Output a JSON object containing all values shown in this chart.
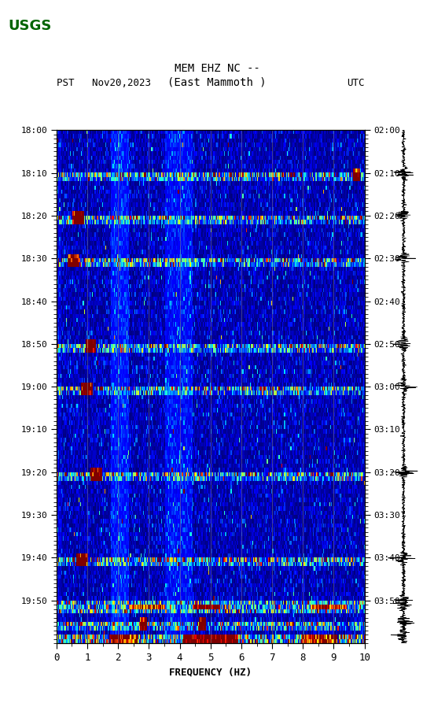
{
  "title_line1": "MEM EHZ NC --",
  "title_line2": "(East Mammoth )",
  "left_label": "PST   Nov20,2023",
  "right_label": "UTC",
  "xlabel": "FREQUENCY (HZ)",
  "ylabel_left_times": [
    "18:00",
    "18:10",
    "18:20",
    "18:30",
    "18:40",
    "18:50",
    "19:00",
    "19:10",
    "19:20",
    "19:30",
    "19:40",
    "19:50"
  ],
  "ylabel_right_times": [
    "02:00",
    "02:10",
    "02:20",
    "02:30",
    "02:40",
    "02:50",
    "03:00",
    "03:10",
    "03:20",
    "03:30",
    "03:40",
    "03:50"
  ],
  "freq_min": 0,
  "freq_max": 10,
  "time_steps": 120,
  "freq_steps": 340,
  "background_color": "#ffffff",
  "spectrogram_bg": "#000080",
  "colormap": "jet",
  "vertical_lines_freq": [
    1,
    2,
    3,
    4,
    5,
    6,
    7,
    8,
    9
  ],
  "logo_color": "#006400",
  "font_family": "monospace"
}
